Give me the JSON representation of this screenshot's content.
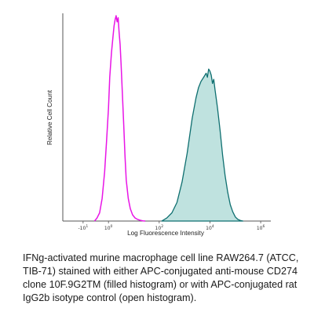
{
  "chart_data": {
    "type": "area",
    "title": "",
    "xlabel": "Log Fluorescence Intensity",
    "ylabel": "Relative Cell Count",
    "x_scale": "log",
    "x_ticks": [
      {
        "value": -1,
        "base": "-10",
        "exp": "1"
      },
      {
        "value": 0,
        "base": "10",
        "exp": "0"
      },
      {
        "value": 2,
        "base": "10",
        "exp": "2"
      },
      {
        "value": 4,
        "base": "10",
        "exp": "4"
      },
      {
        "value": 6,
        "base": "10",
        "exp": "6"
      }
    ],
    "xlim_decades": [
      -1.8,
      6.4
    ],
    "ylim": [
      0,
      100
    ],
    "grid": false,
    "legend": "none",
    "series": [
      {
        "style": "open",
        "color": "#e815e6",
        "x_log": [
          -0.55,
          -0.45,
          -0.35,
          -0.25,
          -0.15,
          -0.08,
          0.0,
          0.05,
          0.12,
          0.18,
          0.22,
          0.26,
          0.3,
          0.34,
          0.38,
          0.42,
          0.46,
          0.5,
          0.55,
          0.6,
          0.65,
          0.7,
          0.78,
          0.86,
          0.95,
          1.05,
          1.15,
          1.25,
          1.35,
          1.45
        ],
        "y": [
          0,
          1.5,
          4,
          11,
          24,
          38,
          55,
          70,
          82,
          90,
          95,
          98,
          100,
          97,
          99,
          92,
          86,
          76,
          62,
          47,
          32,
          20,
          11,
          6,
          3,
          1.5,
          0.8,
          0.4,
          0.1,
          0
        ]
      },
      {
        "style": "filled",
        "color": "#0f6f70",
        "fill": "#bfe2df",
        "x_log": [
          2.1,
          2.3,
          2.5,
          2.7,
          2.9,
          3.1,
          3.3,
          3.45,
          3.55,
          3.65,
          3.75,
          3.85,
          3.9,
          3.95,
          4.0,
          4.05,
          4.1,
          4.15,
          4.2,
          4.3,
          4.4,
          4.5,
          4.6,
          4.7,
          4.8,
          4.9,
          5.0,
          5.1,
          5.2,
          5.3
        ],
        "y": [
          0,
          1.5,
          4,
          9,
          19,
          33,
          50,
          60,
          65,
          68,
          70,
          72,
          70,
          74,
          73,
          71,
          67,
          69,
          64,
          55,
          44,
          32,
          22,
          14,
          8,
          4.5,
          2,
          0.8,
          0.3,
          0
        ]
      }
    ]
  },
  "caption": "IFNg-activated murine macrophage cell line RAW264.7 (ATCC, TIB-71) stained with either APC-conjugated anti-mouse CD274 clone 10F.9G2TM (filled histogram) or with APC-conjugated rat IgG2b isotype control (open histogram)."
}
